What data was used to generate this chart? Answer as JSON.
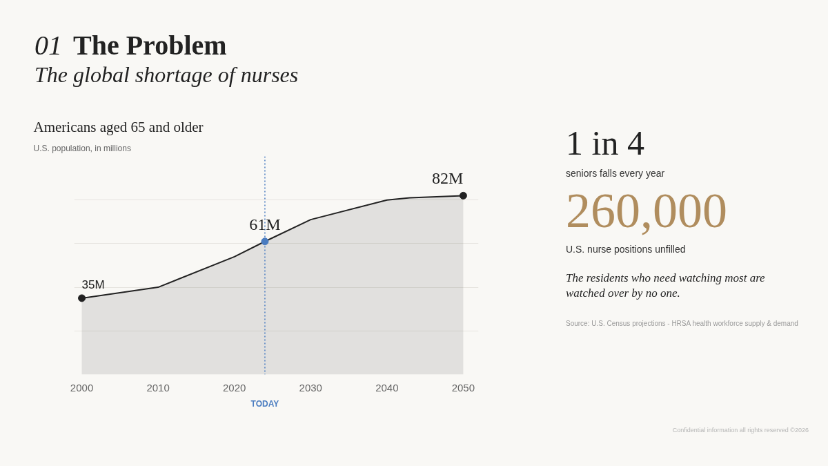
{
  "chart_data": {
    "type": "area",
    "title": "Americans aged 65 and older",
    "subtitle": "U.S. population, in millions",
    "x": [
      2000,
      2010,
      2020,
      2024,
      2030,
      2040,
      2043,
      2050
    ],
    "series": [
      {
        "color": "#222222",
        "values": [
          35,
          40,
          54,
          61,
          71,
          80,
          81,
          82
        ]
      },
      {
        "type": "scatter",
        "marker": "circle",
        "x": [
          2000,
          2024,
          2050
        ],
        "values": [
          35,
          61,
          82
        ],
        "colors": [
          "#222222",
          "#4a7cc0",
          "#222222"
        ],
        "value_labels": [
          "35M",
          "61M",
          "82M"
        ]
      }
    ],
    "xlim": [
      1999,
      2052
    ],
    "ylim": [
      0,
      100
    ],
    "xticks": [
      2000,
      2010,
      2020,
      2030,
      2040,
      2050
    ],
    "yticks": [
      {
        "value": 20,
        "label": null
      },
      {
        "value": 40,
        "label": null
      },
      {
        "value": 60,
        "label": null
      },
      {
        "value": 80,
        "label": null
      }
    ],
    "grid": "y",
    "line_style": "solid",
    "tick_labels": "x",
    "ref_lines": [
      {
        "axis": "x",
        "value": 2024,
        "label": "TODAY",
        "color": "#4a7cc0",
        "line_style": "dotted"
      }
    ],
    "annotations": [
      "01",
      "The Problem",
      "The global shortage of nurses",
      "1 in 4",
      "seniors falls every year",
      "260,000",
      "U.S. nurse positions unfilled",
      "The residents who need watching most are watched over by no one.",
      "Source: U.S. Census projections - HRSA health workforce supply & demand",
      "Confidential information all rights reserved ©2026"
    ]
  }
}
